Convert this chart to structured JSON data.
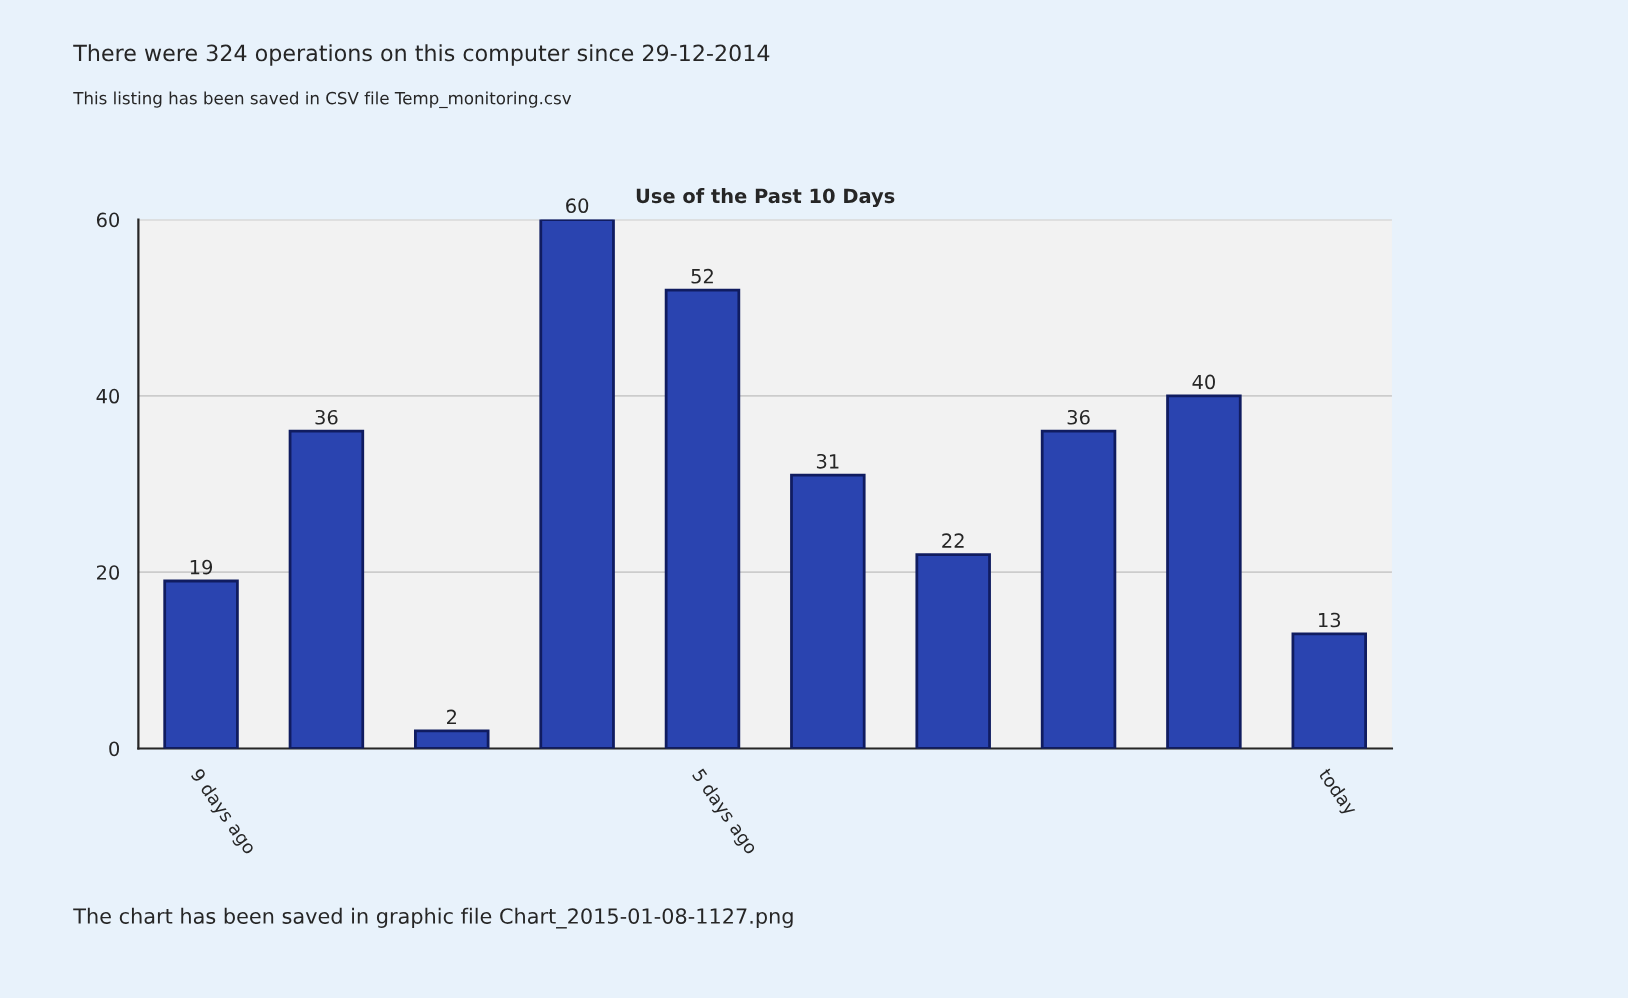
{
  "chart_data": {
    "type": "bar",
    "title": "Use of the Past 10 Days",
    "categories": [
      "9 days ago",
      null,
      null,
      null,
      "5 days ago",
      null,
      null,
      null,
      null,
      "today"
    ],
    "values": [
      19,
      36,
      2,
      60,
      52,
      31,
      22,
      36,
      40,
      13
    ],
    "color": "#2a44b0",
    "ylim": [
      0,
      60
    ],
    "yticks": [
      0,
      20,
      40,
      60
    ],
    "data_labels": true,
    "grid": "y",
    "annotations": [
      "There were 324 operations on this computer since 29-12-2014",
      "This listing has been saved in CSV file Temp_monitoring.csv",
      "The chart has been saved in graphic file Chart_2015-01-08-1127.png"
    ]
  }
}
